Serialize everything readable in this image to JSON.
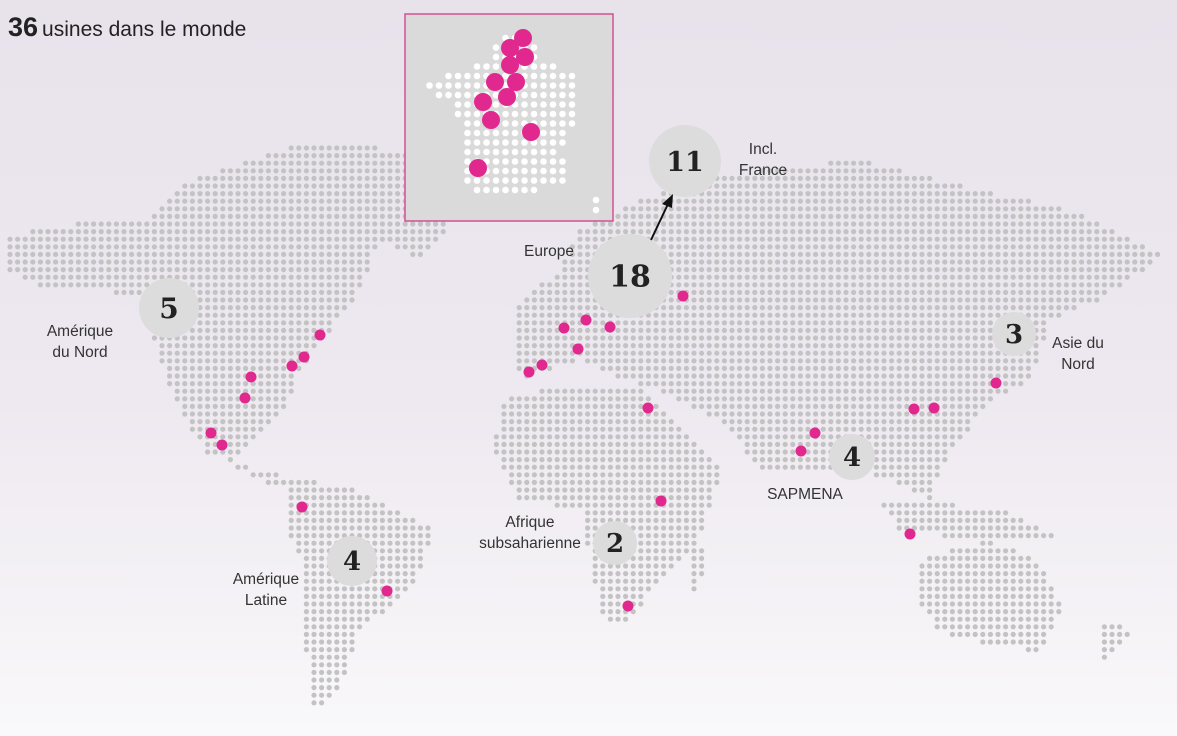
{
  "title": {
    "count": "36",
    "text": "usines dans le monde"
  },
  "colors": {
    "plant_marker": "#e0288e",
    "land_dots": "#c3c3c3",
    "count_circle": "#dcdcdc",
    "inset_border": "#d44f92",
    "inset_background": "#dadada"
  },
  "regions": [
    {
      "label": "Amérique\ndu Nord",
      "count": "5"
    },
    {
      "label": "Amérique\nLatine",
      "count": "4"
    },
    {
      "label": "Europe",
      "count": "18"
    },
    {
      "label": "Afrique\nsubsaharienne",
      "count": "2"
    },
    {
      "label": "SAPMENA",
      "count": "4"
    },
    {
      "label": "Asie du\nNord",
      "count": "3"
    }
  ],
  "france": {
    "label": "Incl.\nFrance",
    "count": "11"
  }
}
